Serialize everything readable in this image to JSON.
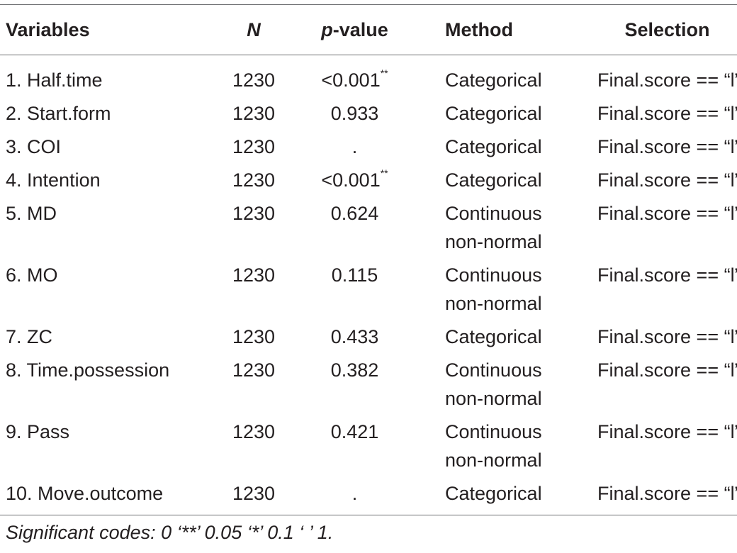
{
  "table": {
    "headers": {
      "variables": "Variables",
      "n": "N",
      "p_italic": "p",
      "p_rest": "-value",
      "method": "Method",
      "selection": "Selection"
    },
    "rows": [
      {
        "variable": "1. Half.time",
        "n": "1230",
        "p": "<0.001",
        "sig": "**",
        "method": [
          "Categorical"
        ],
        "selection": "Final.score == “l”"
      },
      {
        "variable": "2. Start.form",
        "n": "1230",
        "p": "0.933",
        "sig": "",
        "method": [
          "Categorical"
        ],
        "selection": "Final.score == “l”"
      },
      {
        "variable": "3. COI",
        "n": "1230",
        "p": ".",
        "sig": "",
        "method": [
          "Categorical"
        ],
        "selection": "Final.score == “l”"
      },
      {
        "variable": "4. Intention",
        "n": "1230",
        "p": "<0.001",
        "sig": "**",
        "method": [
          "Categorical"
        ],
        "selection": "Final.score == “l”"
      },
      {
        "variable": "5. MD",
        "n": "1230",
        "p": "0.624",
        "sig": "",
        "method": [
          "Continuous",
          "non-normal"
        ],
        "selection": "Final.score == “l”"
      },
      {
        "variable": "6. MO",
        "n": "1230",
        "p": "0.115",
        "sig": "",
        "method": [
          "Continuous",
          "non-normal"
        ],
        "selection": "Final.score == “l”"
      },
      {
        "variable": "7. ZC",
        "n": "1230",
        "p": "0.433",
        "sig": "",
        "method": [
          "Categorical"
        ],
        "selection": "Final.score == “l”"
      },
      {
        "variable": "8. Time.possession",
        "n": "1230",
        "p": "0.382",
        "sig": "",
        "method": [
          "Continuous",
          "non-normal"
        ],
        "selection": "Final.score == “l”"
      },
      {
        "variable": "9. Pass",
        "n": "1230",
        "p": "0.421",
        "sig": "",
        "method": [
          "Continuous",
          "non-normal"
        ],
        "selection": "Final.score == “l”"
      },
      {
        "variable": "10. Move.outcome",
        "n": "1230",
        "p": ".",
        "sig": "",
        "method": [
          "Categorical"
        ],
        "selection": "Final.score == “l”"
      }
    ]
  },
  "footnote": "Significant codes: 0 ‘**’ 0.05 ‘*’ 0.1 ‘ ’ 1."
}
